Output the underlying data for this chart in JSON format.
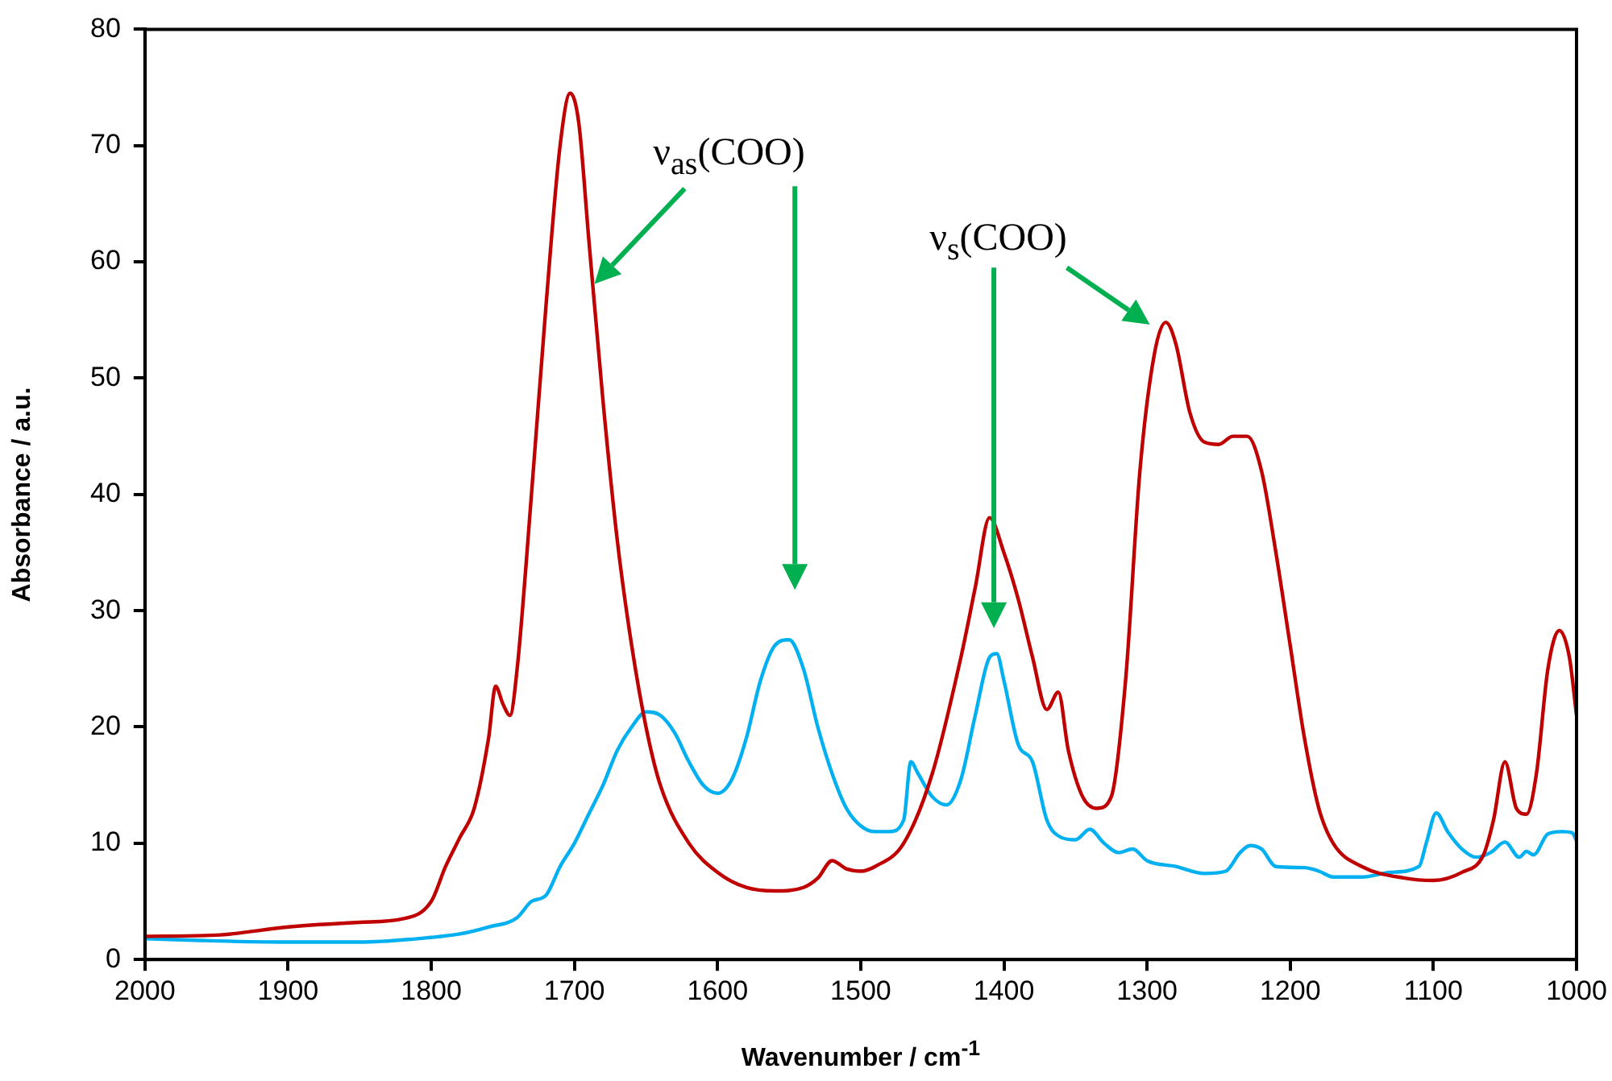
{
  "chart_data": {
    "type": "line",
    "xlabel": "Wavenumber / cm$^{-1}$",
    "ylabel": "Absorbance / a.u.",
    "xlim": [
      2000,
      1000
    ],
    "xticks": [
      2000,
      1900,
      1800,
      1700,
      1600,
      1500,
      1400,
      1300,
      1200,
      1100,
      1000
    ],
    "ylim": [
      0,
      80
    ],
    "yticks": [
      0,
      10,
      20,
      30,
      40,
      50,
      60,
      70,
      80
    ],
    "marker": "none",
    "line_style": "solid",
    "annotations": [
      "ν$_{as}$(COO)",
      "ν$_{s}$(COO)"
    ],
    "series": [
      {
        "color": "#c00000",
        "x": [
          2000,
          1950,
          1900,
          1850,
          1820,
          1800,
          1790,
          1780,
          1770,
          1760,
          1755,
          1750,
          1745,
          1740,
          1730,
          1720,
          1710,
          1703,
          1697,
          1690,
          1680,
          1670,
          1660,
          1650,
          1640,
          1620,
          1600,
          1580,
          1560,
          1540,
          1530,
          1520,
          1510,
          1500,
          1490,
          1470,
          1450,
          1430,
          1420,
          1410,
          1400,
          1390,
          1380,
          1370,
          1362,
          1355,
          1345,
          1335,
          1325,
          1315,
          1305,
          1295,
          1287,
          1280,
          1270,
          1260,
          1250,
          1240,
          1230,
          1220,
          1210,
          1200,
          1190,
          1180,
          1170,
          1150,
          1120,
          1100,
          1080,
          1065,
          1058,
          1050,
          1042,
          1035,
          1028,
          1020,
          1012,
          1005,
          1000
        ],
        "values": [
          2,
          2.1,
          2.8,
          3.2,
          3.5,
          5,
          8,
          10.5,
          13,
          19,
          23.5,
          22,
          21,
          25,
          40,
          56,
          70,
          74.5,
          72,
          62,
          48,
          36,
          27,
          20,
          15,
          10,
          7.5,
          6.2,
          5.9,
          6.2,
          7,
          8.5,
          7.8,
          7.6,
          8,
          10,
          16,
          26,
          32,
          38,
          35,
          31,
          26,
          21.5,
          23,
          18,
          14,
          13,
          14,
          24,
          42,
          52,
          54.8,
          53,
          47,
          44.5,
          44.3,
          45,
          45,
          42,
          35,
          27,
          19,
          13,
          10,
          8,
          7,
          6.8,
          7.5,
          9,
          12,
          17,
          13,
          12.5,
          16,
          25,
          28.3,
          26,
          21
        ]
      },
      {
        "color": "#00b0f0",
        "x": [
          2000,
          1950,
          1900,
          1850,
          1800,
          1780,
          1760,
          1740,
          1730,
          1720,
          1710,
          1700,
          1690,
          1680,
          1670,
          1660,
          1650,
          1640,
          1630,
          1620,
          1610,
          1600,
          1590,
          1580,
          1570,
          1560,
          1550,
          1540,
          1530,
          1520,
          1510,
          1500,
          1490,
          1480,
          1470,
          1465,
          1460,
          1450,
          1440,
          1430,
          1420,
          1410,
          1405,
          1400,
          1390,
          1380,
          1370,
          1360,
          1350,
          1340,
          1330,
          1320,
          1310,
          1300,
          1280,
          1260,
          1245,
          1235,
          1228,
          1220,
          1210,
          1190,
          1180,
          1170,
          1150,
          1130,
          1110,
          1105,
          1098,
          1090,
          1080,
          1070,
          1060,
          1050,
          1040,
          1035,
          1030,
          1020,
          1010,
          1003,
          1000
        ],
        "values": [
          1.8,
          1.6,
          1.5,
          1.5,
          1.9,
          2.2,
          2.8,
          3.6,
          5,
          5.5,
          8,
          10,
          12.5,
          15,
          18,
          20,
          21.3,
          21,
          19.5,
          17,
          15,
          14.3,
          15.5,
          19,
          24,
          27,
          27.5,
          25,
          20,
          16,
          13,
          11.5,
          11,
          11,
          12,
          17,
          16,
          14,
          13.3,
          15.5,
          21,
          26,
          26.3,
          24,
          18.5,
          17,
          12,
          10.5,
          10.3,
          11.2,
          10,
          9.2,
          9.5,
          8.5,
          8,
          7.4,
          7.6,
          9.2,
          9.8,
          9.5,
          8,
          7.9,
          7.6,
          7.1,
          7.1,
          7.5,
          8,
          10,
          12.6,
          11,
          9.5,
          8.8,
          9.2,
          10.1,
          8.8,
          9.3,
          9,
          10.8,
          11,
          10.9,
          10.2
        ]
      }
    ]
  }
}
